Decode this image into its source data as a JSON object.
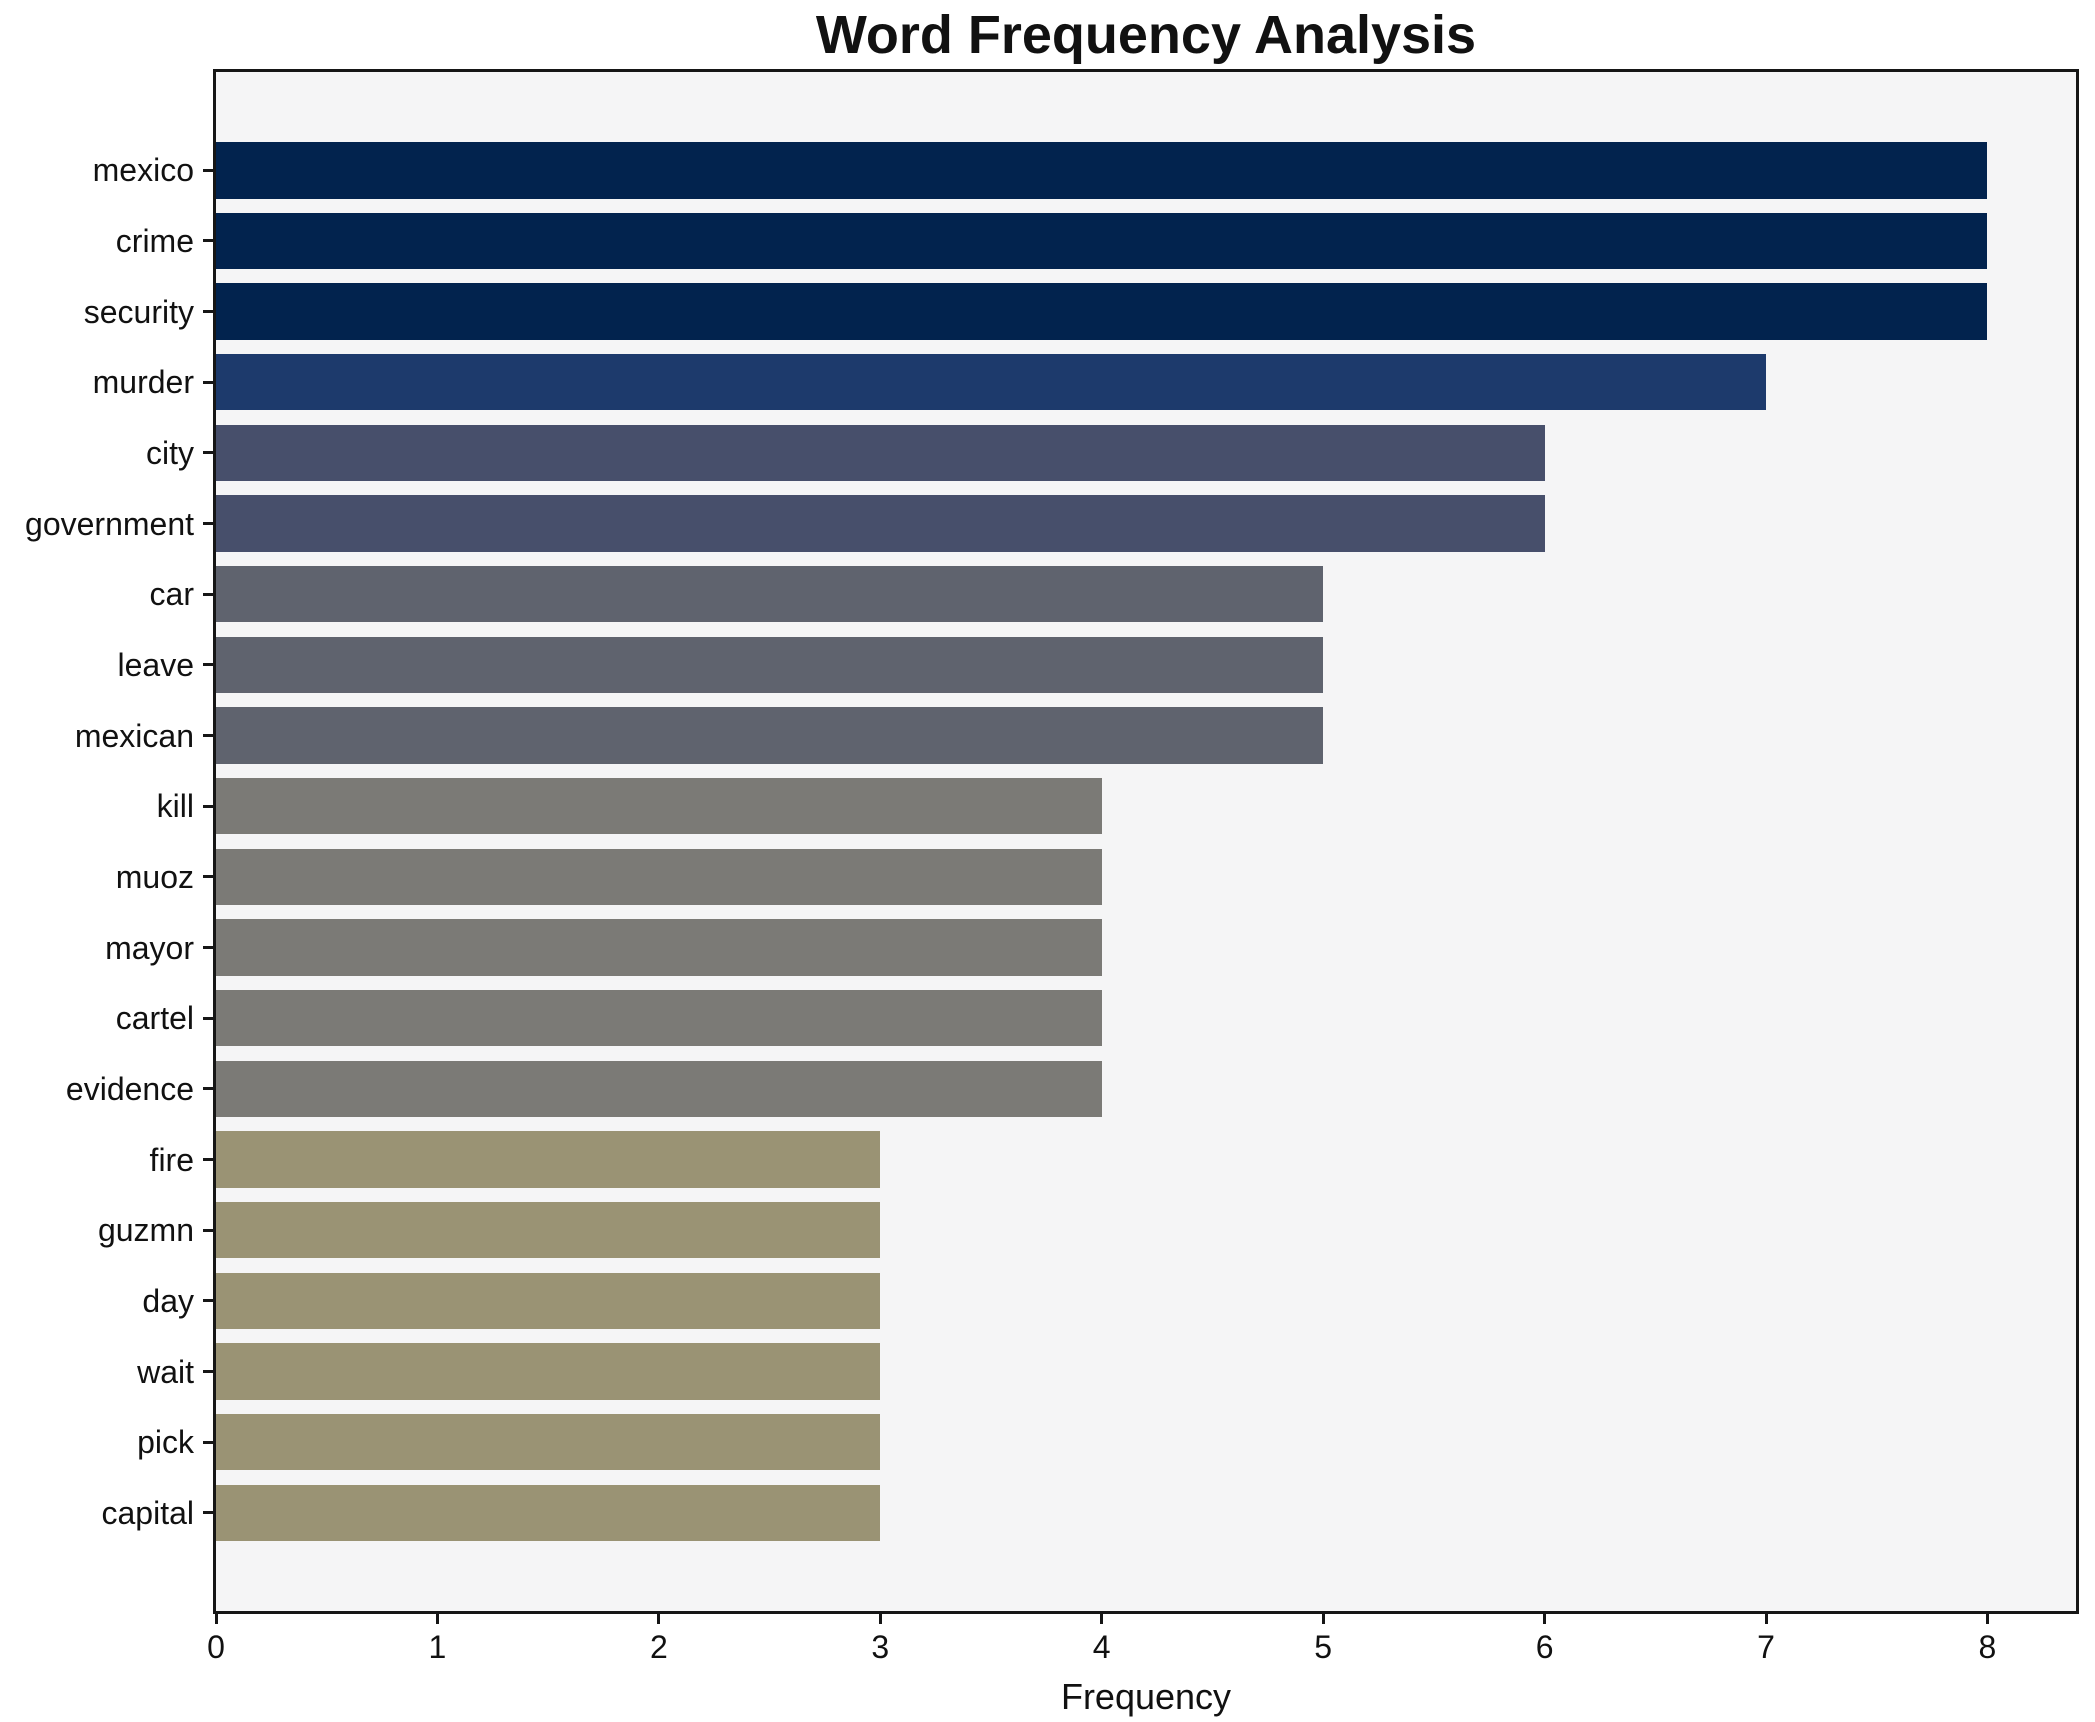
{
  "title": "Word Frequency Analysis",
  "chart_data": {
    "type": "bar",
    "orientation": "horizontal",
    "title": "Word Frequency Analysis",
    "xlabel": "Frequency",
    "ylabel": "",
    "categories": [
      "mexico",
      "crime",
      "security",
      "murder",
      "city",
      "government",
      "car",
      "leave",
      "mexican",
      "kill",
      "muoz",
      "mayor",
      "cartel",
      "evidence",
      "fire",
      "guzmn",
      "day",
      "wait",
      "pick",
      "capital"
    ],
    "values": [
      8,
      8,
      8,
      7,
      6,
      6,
      5,
      5,
      5,
      4,
      4,
      4,
      4,
      4,
      3,
      3,
      3,
      3,
      3,
      3
    ],
    "xticks": [
      "0",
      "1",
      "2",
      "3",
      "4",
      "5",
      "6",
      "7",
      "8"
    ],
    "xlim": [
      0,
      8.4
    ],
    "grid": false,
    "legend": null,
    "value_colors": {
      "8": "#02234e",
      "7": "#1d3a6c",
      "6": "#474f6b",
      "5": "#5f636e",
      "4": "#7b7a76",
      "3": "#9a9374"
    },
    "plot_background": "#f5f5f6",
    "figure_background": "#ffffff",
    "text_color": "#111111"
  }
}
